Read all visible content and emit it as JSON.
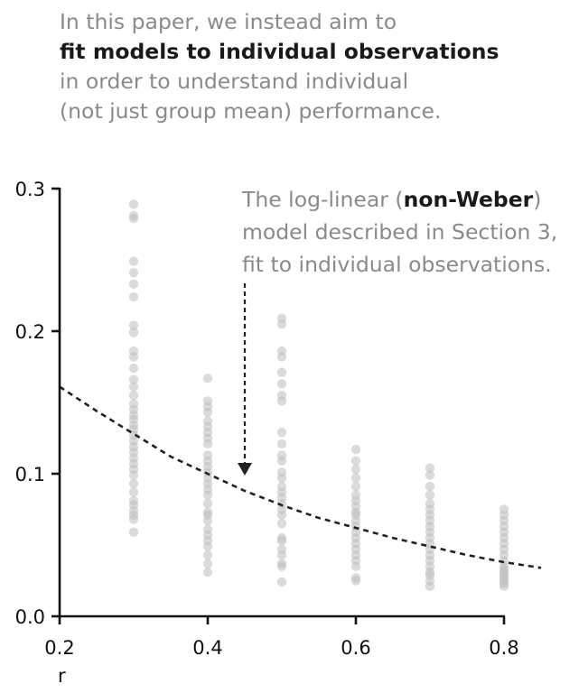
{
  "intro": {
    "line1": "In this paper, we instead aim to",
    "line2": "fit models to individual observations",
    "line3": "in order to understand individual",
    "line4": "(not just group mean) performance."
  },
  "annotation": {
    "line1_pre": "The log-linear (",
    "line1_bold": "non-Weber",
    "line1_post": ")",
    "line2": "model described in Section 3,",
    "line3": "fit to individual observations."
  },
  "colors": {
    "points": "#bdbdbd",
    "curve": "#222222",
    "axis": "#111111",
    "annotation_text": "#8a8a8a"
  },
  "chart_data": {
    "type": "scatter",
    "title": "",
    "xlabel": "r",
    "ylabel": "",
    "xlim": [
      0.2,
      0.85
    ],
    "ylim": [
      0.0,
      0.3
    ],
    "x_ticks": [
      0.2,
      0.4,
      0.6,
      0.8
    ],
    "x_tick_labels": [
      "0.2",
      "0.4",
      "0.6",
      "0.8"
    ],
    "y_ticks": [
      0.0,
      0.1,
      0.2,
      0.3
    ],
    "y_tick_labels": [
      "0.0",
      "0.1",
      "0.2",
      "0.3"
    ],
    "grid": false,
    "points": [
      {
        "x": 0.3,
        "y": [
          0.289,
          0.281,
          0.279,
          0.249,
          0.241,
          0.233,
          0.224,
          0.204,
          0.199,
          0.186,
          0.182,
          0.174,
          0.166,
          0.161,
          0.155,
          0.149,
          0.145,
          0.141,
          0.138,
          0.134,
          0.131,
          0.127,
          0.123,
          0.119,
          0.115,
          0.111,
          0.107,
          0.103,
          0.099,
          0.093,
          0.087,
          0.081,
          0.078,
          0.074,
          0.071,
          0.068,
          0.059
        ]
      },
      {
        "x": 0.4,
        "y": [
          0.167,
          0.151,
          0.147,
          0.143,
          0.137,
          0.133,
          0.129,
          0.125,
          0.121,
          0.113,
          0.109,
          0.105,
          0.101,
          0.097,
          0.093,
          0.089,
          0.085,
          0.079,
          0.073,
          0.071,
          0.067,
          0.061,
          0.057,
          0.053,
          0.049,
          0.043,
          0.037,
          0.031
        ]
      },
      {
        "x": 0.5,
        "y": [
          0.209,
          0.205,
          0.186,
          0.182,
          0.171,
          0.163,
          0.155,
          0.151,
          0.129,
          0.121,
          0.113,
          0.109,
          0.101,
          0.097,
          0.091,
          0.087,
          0.083,
          0.079,
          0.075,
          0.071,
          0.065,
          0.055,
          0.053,
          0.047,
          0.043,
          0.037,
          0.035,
          0.024
        ]
      },
      {
        "x": 0.6,
        "y": [
          0.117,
          0.109,
          0.103,
          0.097,
          0.091,
          0.085,
          0.081,
          0.077,
          0.073,
          0.071,
          0.067,
          0.063,
          0.059,
          0.055,
          0.051,
          0.047,
          0.043,
          0.039,
          0.035,
          0.027,
          0.025
        ]
      },
      {
        "x": 0.7,
        "y": [
          0.104,
          0.099,
          0.091,
          0.085,
          0.079,
          0.075,
          0.071,
          0.067,
          0.063,
          0.059,
          0.055,
          0.051,
          0.047,
          0.043,
          0.039,
          0.035,
          0.031,
          0.029,
          0.025,
          0.021
        ]
      },
      {
        "x": 0.8,
        "y": [
          0.075,
          0.071,
          0.067,
          0.063,
          0.059,
          0.055,
          0.051,
          0.047,
          0.043,
          0.039,
          0.035,
          0.033,
          0.031,
          0.029,
          0.027,
          0.025,
          0.023,
          0.021
        ]
      }
    ],
    "curve": {
      "style": "dashed",
      "x": [
        0.2,
        0.25,
        0.3,
        0.35,
        0.4,
        0.45,
        0.5,
        0.55,
        0.6,
        0.65,
        0.7,
        0.75,
        0.8,
        0.85
      ],
      "y": [
        0.161,
        0.144,
        0.128,
        0.112,
        0.1,
        0.088,
        0.078,
        0.069,
        0.062,
        0.055,
        0.049,
        0.043,
        0.038,
        0.034
      ]
    },
    "annotation_arrow": {
      "x": 0.45,
      "y_from": 0.235,
      "y_to": 0.1
    }
  }
}
